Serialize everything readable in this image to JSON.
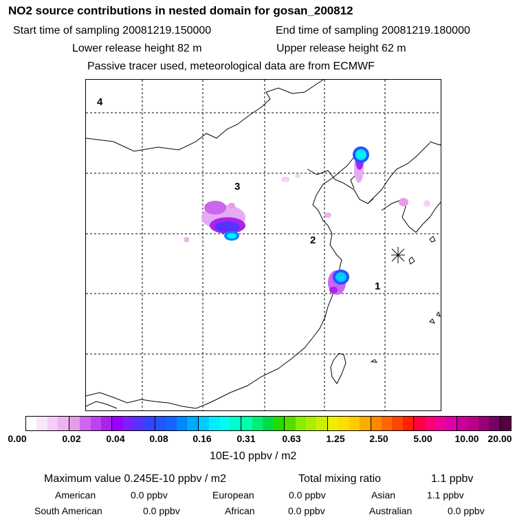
{
  "header": {
    "title": "NO2 source contributions in nested domain for gosan_200812",
    "start_label": "Start time of sampling 20081219.150000",
    "end_label": "End time of sampling 20081219.180000",
    "lower_label": "Lower release height   82 m",
    "upper_label": "Upper release height   62 m",
    "note": "Passive tracer used, meteorological data are from ECMWF"
  },
  "map": {
    "regions": [
      "1",
      "2",
      "3",
      "4"
    ],
    "station_marker": "asterisk-icon"
  },
  "colorbar": {
    "ticks": [
      "0.00",
      "0.02",
      "0.04",
      "0.08",
      "0.16",
      "0.31",
      "0.63",
      "1.25",
      "2.50",
      "5.00",
      "10.00",
      "20.00"
    ],
    "colors": [
      "#ffffff",
      "#fbe6fb",
      "#f6ccf6",
      "#f0b2f0",
      "#e89be8",
      "#cc66ee",
      "#bb44ee",
      "#aa22ee",
      "#9900ff",
      "#7722ff",
      "#5533ff",
      "#3344ff",
      "#2255ff",
      "#1166ff",
      "#0088ff",
      "#00aaff",
      "#00ccff",
      "#00eeff",
      "#00ffee",
      "#00ffcc",
      "#00ffaa",
      "#00ee77",
      "#00dd44",
      "#22dd00",
      "#55dd00",
      "#88ee00",
      "#aaee00",
      "#ccee00",
      "#eeee00",
      "#ffdd00",
      "#ffcc00",
      "#ffaa00",
      "#ff8800",
      "#ff6600",
      "#ff4400",
      "#ff2200",
      "#ff0044",
      "#ff0077",
      "#ee0099",
      "#dd00aa",
      "#cc0099",
      "#bb0088",
      "#990077",
      "#770066",
      "#550044"
    ],
    "units": "10E-10 ppbv / m2"
  },
  "stats": {
    "max_label": "Maximum value  0.245E-10 ppbv / m2",
    "total_label": "Total mixing ratio",
    "total_value": "1.1 ppbv",
    "american_label": "American",
    "american_value": "0.0 ppbv",
    "european_label": "European",
    "european_value": "0.0 ppbv",
    "asian_label": "Asian",
    "asian_value": "1.1 ppbv",
    "south_american_label": "South American",
    "south_american_value": "0.0 ppbv",
    "african_label": "African",
    "african_value": "0.0 ppbv",
    "australian_label": "Australian",
    "australian_value": "0.0 ppbv"
  }
}
